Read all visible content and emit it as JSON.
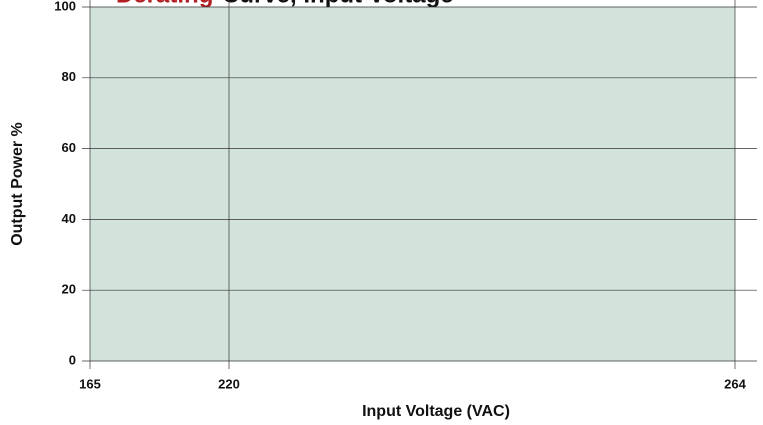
{
  "chart_data": {
    "type": "area",
    "title_highlight": "Derating",
    "title": "Curve, Input Voltage",
    "x_label": "Input Voltage (VAC)",
    "y_label": "Output Power %",
    "x": [
      165,
      264
    ],
    "values": [
      100,
      100
    ],
    "color": "#d2e3dc",
    "xlim": [
      165,
      264
    ],
    "xticks": [
      165,
      220,
      264
    ],
    "ylim": [
      0,
      100
    ],
    "yticks": [
      0,
      20,
      40,
      60,
      80,
      100
    ],
    "grid": true
  }
}
